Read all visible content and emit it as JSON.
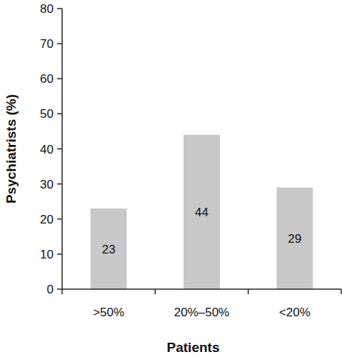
{
  "chart_data": {
    "type": "bar",
    "x_label": "Patients",
    "y_label": "Psychiatrists (%)",
    "categories": [
      ">50%",
      "20%–50%",
      "<20%"
    ],
    "values": [
      23,
      44,
      29
    ],
    "color": "#c8c8c8",
    "ylim": [
      0,
      80
    ],
    "yticks": [
      0,
      10,
      20,
      30,
      40,
      50,
      60,
      70,
      80
    ],
    "grid": false,
    "data_labels": true
  }
}
